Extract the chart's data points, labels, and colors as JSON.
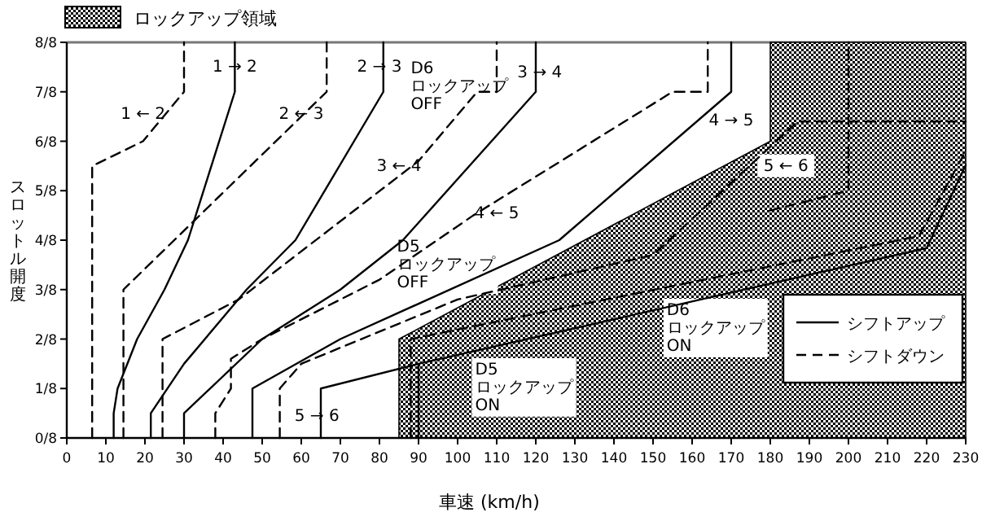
{
  "chart_data": {
    "type": "line",
    "xlabel": "車速 (km/h)",
    "ylabel": "スロットル開度",
    "xlim": [
      0,
      230
    ],
    "ylim": [
      0,
      1
    ],
    "xticks": [
      0,
      10,
      20,
      30,
      40,
      50,
      60,
      70,
      80,
      90,
      100,
      110,
      120,
      130,
      140,
      150,
      160,
      170,
      180,
      190,
      200,
      210,
      220,
      230
    ],
    "yticks": [
      {
        "value": 0,
        "label": "0/8"
      },
      {
        "value": 0.125,
        "label": "1/8"
      },
      {
        "value": 0.25,
        "label": "2/8"
      },
      {
        "value": 0.375,
        "label": "3/8"
      },
      {
        "value": 0.5,
        "label": "4/8"
      },
      {
        "value": 0.625,
        "label": "5/8"
      },
      {
        "value": 0.75,
        "label": "6/8"
      },
      {
        "value": 0.875,
        "label": "7/8"
      },
      {
        "value": 1,
        "label": "8/8"
      }
    ],
    "legend": "top left",
    "series": [
      {
        "type": "area",
        "name": "ロックアップ領域",
        "color": "#000000",
        "x": [
          85,
          180,
          180,
          230
        ],
        "values": [
          0.25,
          0.75,
          1,
          1
        ]
      },
      {
        "name": "シフトアップ",
        "color": "#000000",
        "line_style": "solid",
        "x": [
          12,
          12,
          13,
          18,
          25,
          31,
          43,
          43
        ],
        "values": [
          0,
          0.0625,
          0.125,
          0.25,
          0.375,
          0.5,
          0.875,
          1
        ]
      },
      {
        "color": "#000000",
        "line_style": "solid",
        "x": [
          21.5,
          21.5,
          30,
          46,
          58.5,
          81,
          81
        ],
        "values": [
          0,
          0.0625,
          0.1875,
          0.375,
          0.5,
          0.875,
          1
        ]
      },
      {
        "color": "#000000",
        "line_style": "solid",
        "x": [
          30,
          30,
          50,
          70,
          86,
          120,
          120
        ],
        "values": [
          0,
          0.0625,
          0.25,
          0.375,
          0.5,
          0.875,
          1
        ]
      },
      {
        "color": "#000000",
        "line_style": "solid",
        "x": [
          47.5,
          47.5,
          70,
          126,
          170,
          170
        ],
        "values": [
          0,
          0.125,
          0.25,
          0.5,
          0.875,
          1
        ]
      },
      {
        "color": "#000000",
        "line_style": "solid",
        "x": [
          65,
          65,
          90
        ],
        "values": [
          0,
          0.125,
          0.1875
        ]
      },
      {
        "name": "シフトダウン",
        "color": "#000000",
        "line_style": "dashed",
        "x": [
          6.5,
          6.5,
          19.5,
          30,
          30
        ],
        "values": [
          0,
          0.6875,
          0.75,
          0.875,
          1
        ]
      },
      {
        "color": "#000000",
        "line_style": "dashed",
        "x": [
          14.5,
          14.5,
          66.5,
          66.5
        ],
        "values": [
          0,
          0.375,
          0.875,
          1
        ]
      },
      {
        "color": "#000000",
        "line_style": "dashed",
        "x": [
          24.5,
          24.5,
          44,
          90,
          105,
          110,
          110
        ],
        "values": [
          0,
          0.25,
          0.35,
          0.7,
          0.875,
          0.875,
          1
        ]
      },
      {
        "color": "#000000",
        "line_style": "dashed",
        "x": [
          38,
          38,
          42,
          42,
          50,
          80,
          104,
          155,
          164,
          164
        ],
        "values": [
          0,
          0.0625,
          0.125,
          0.2,
          0.25,
          0.4,
          0.5625,
          0.875,
          0.875,
          1
        ]
      },
      {
        "color": "#000000",
        "line_style": "dashed",
        "x": [
          54.5,
          54.5,
          60,
          100,
          150,
          187,
          230
        ],
        "values": [
          0,
          0.125,
          0.1875,
          0.35,
          0.4625,
          0.8,
          0.8
        ]
      },
      {
        "color": "#000000",
        "line_style": "dashed",
        "x": [
          180,
          200,
          200
        ],
        "values": [
          0.575,
          0.625,
          1
        ]
      },
      {
        "color": "#000000",
        "line_style": "solid",
        "x": [
          90,
          90,
          220,
          230
        ],
        "values": [
          0,
          0.1875,
          0.48,
          0.69
        ]
      },
      {
        "color": "#000000",
        "line_style": "dashed",
        "x": [
          88,
          88,
          218,
          230
        ],
        "values": [
          0,
          0.25,
          0.51,
          0.725
        ]
      }
    ],
    "annotations": [
      {
        "text": "1 → 2",
        "x": 43,
        "y": 0.94
      },
      {
        "text": "2 → 3",
        "x": 80,
        "y": 0.94
      },
      {
        "text": "3 → 4",
        "x": 121,
        "y": 0.925
      },
      "D6\nロックアップ\nOFF",
      {
        "text": "1 ← 2",
        "x": 19.5,
        "y": 0.82
      },
      {
        "text": "2 ← 3",
        "x": 60,
        "y": 0.82
      },
      {
        "text": "3 ← 4",
        "x": 85,
        "y": 0.69
      },
      {
        "text": "4 → 5",
        "x": 170,
        "y": 0.805
      },
      {
        "text": "5 ← 6",
        "x": 184,
        "y": 0.69
      },
      {
        "text": "4 ← 5",
        "x": 110,
        "y": 0.57
      },
      "D5\nロックアップ\nOFF",
      {
        "text": "5 → 6",
        "x": 64,
        "y": 0.0575
      },
      "D5\nロックアップ\nON",
      "D6\nロックアップ\nON"
    ]
  }
}
